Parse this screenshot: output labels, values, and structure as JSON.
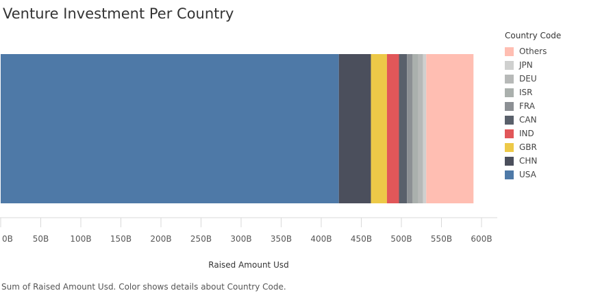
{
  "chart_data": {
    "type": "bar",
    "orientation": "horizontal",
    "stacked": true,
    "title": "Venture Investment Per Country",
    "xlabel": "Raised Amount Usd",
    "ylabel": "",
    "xlim": [
      0,
      620
    ],
    "units": "B",
    "ticks": [
      "0B",
      "50B",
      "100B",
      "150B",
      "200B",
      "250B",
      "300B",
      "350B",
      "400B",
      "450B",
      "500B",
      "550B",
      "600B"
    ],
    "tick_values": [
      0,
      50,
      100,
      150,
      200,
      250,
      300,
      350,
      400,
      450,
      500,
      550,
      600
    ],
    "legend_title": "Country Code",
    "legend_position": "right",
    "grid": false,
    "series": [
      {
        "name": "USA",
        "value": 422,
        "color": "#4e79a7"
      },
      {
        "name": "CHN",
        "value": 40,
        "color": "#4b4f5c"
      },
      {
        "name": "GBR",
        "value": 20,
        "color": "#edc948"
      },
      {
        "name": "IND",
        "value": 15,
        "color": "#e15759"
      },
      {
        "name": "CAN",
        "value": 10,
        "color": "#59606b"
      },
      {
        "name": "FRA",
        "value": 7,
        "color": "#8c9094"
      },
      {
        "name": "ISR",
        "value": 7,
        "color": "#aab0ad"
      },
      {
        "name": "DEU",
        "value": 6,
        "color": "#b7b9b8"
      },
      {
        "name": "JPN",
        "value": 4,
        "color": "#cfd0cf"
      },
      {
        "name": "Others",
        "value": 59,
        "color": "#ffbeb2"
      }
    ],
    "legend_order": [
      "Others",
      "JPN",
      "DEU",
      "ISR",
      "FRA",
      "CAN",
      "IND",
      "GBR",
      "CHN",
      "USA"
    ]
  },
  "caption": "Sum of Raised Amount Usd.  Color shows details about Country Code."
}
